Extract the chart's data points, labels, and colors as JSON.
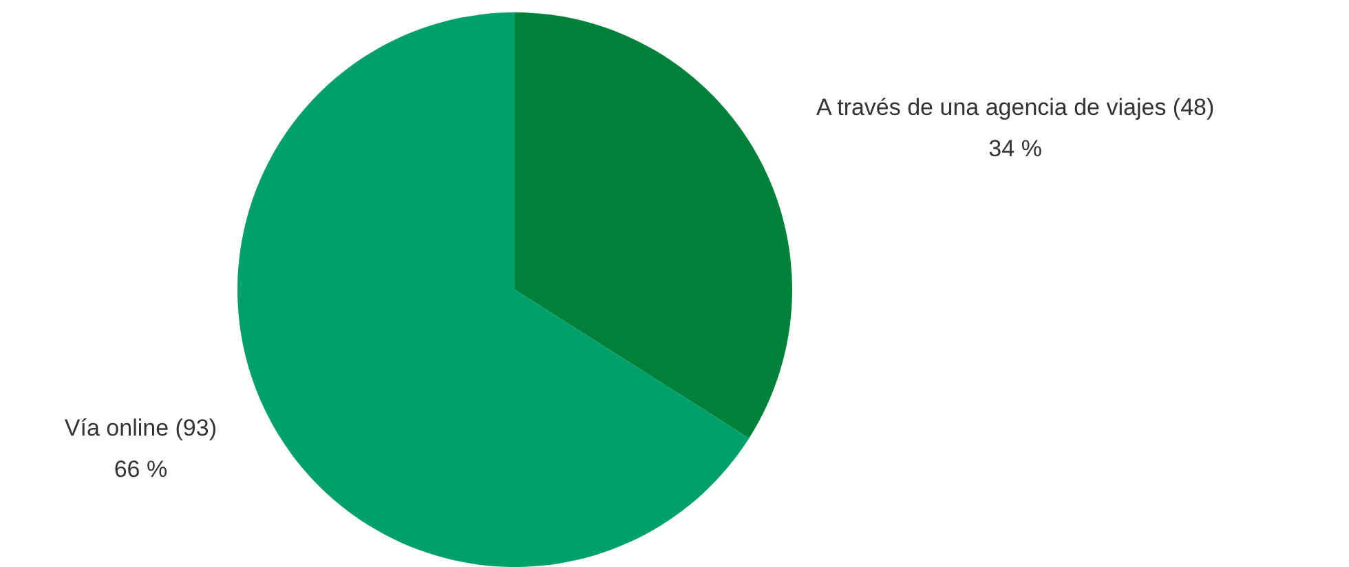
{
  "chart_data": {
    "type": "pie",
    "categories": [
      "A través de una agencia de viajes (48)",
      "Vía online (93)"
    ],
    "values": [
      34,
      66
    ],
    "value_labels": [
      "34 %",
      "66 %"
    ],
    "colors": [
      "#00813a",
      "#00a06b"
    ],
    "legend": false
  }
}
